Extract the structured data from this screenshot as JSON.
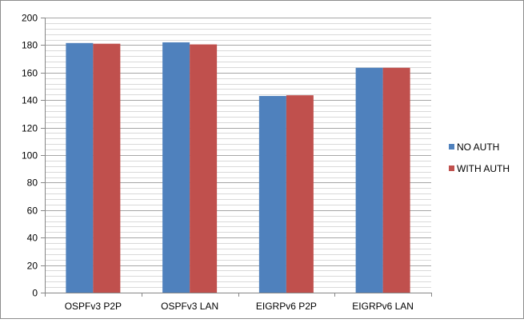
{
  "chart_data": {
    "type": "bar",
    "categories": [
      "OSPFv3 P2P",
      "OSPFv3 LAN",
      "EIGRPv6 P2P",
      "EIGRPv6 LAN"
    ],
    "series": [
      {
        "name": "NO AUTH",
        "color": "#4f81bd",
        "values": [
          181.5,
          182,
          143,
          163.5
        ]
      },
      {
        "name": "WITH AUTH",
        "color": "#c0504d",
        "values": [
          181,
          180.5,
          143.5,
          163.5
        ]
      }
    ],
    "ylim": [
      0,
      200
    ],
    "yticks": [
      0,
      20,
      40,
      60,
      80,
      100,
      120,
      140,
      160,
      180,
      200
    ],
    "minor_grid_step": 4,
    "grid": true,
    "legend_position": "right",
    "title": "",
    "xlabel": "",
    "ylabel": ""
  }
}
